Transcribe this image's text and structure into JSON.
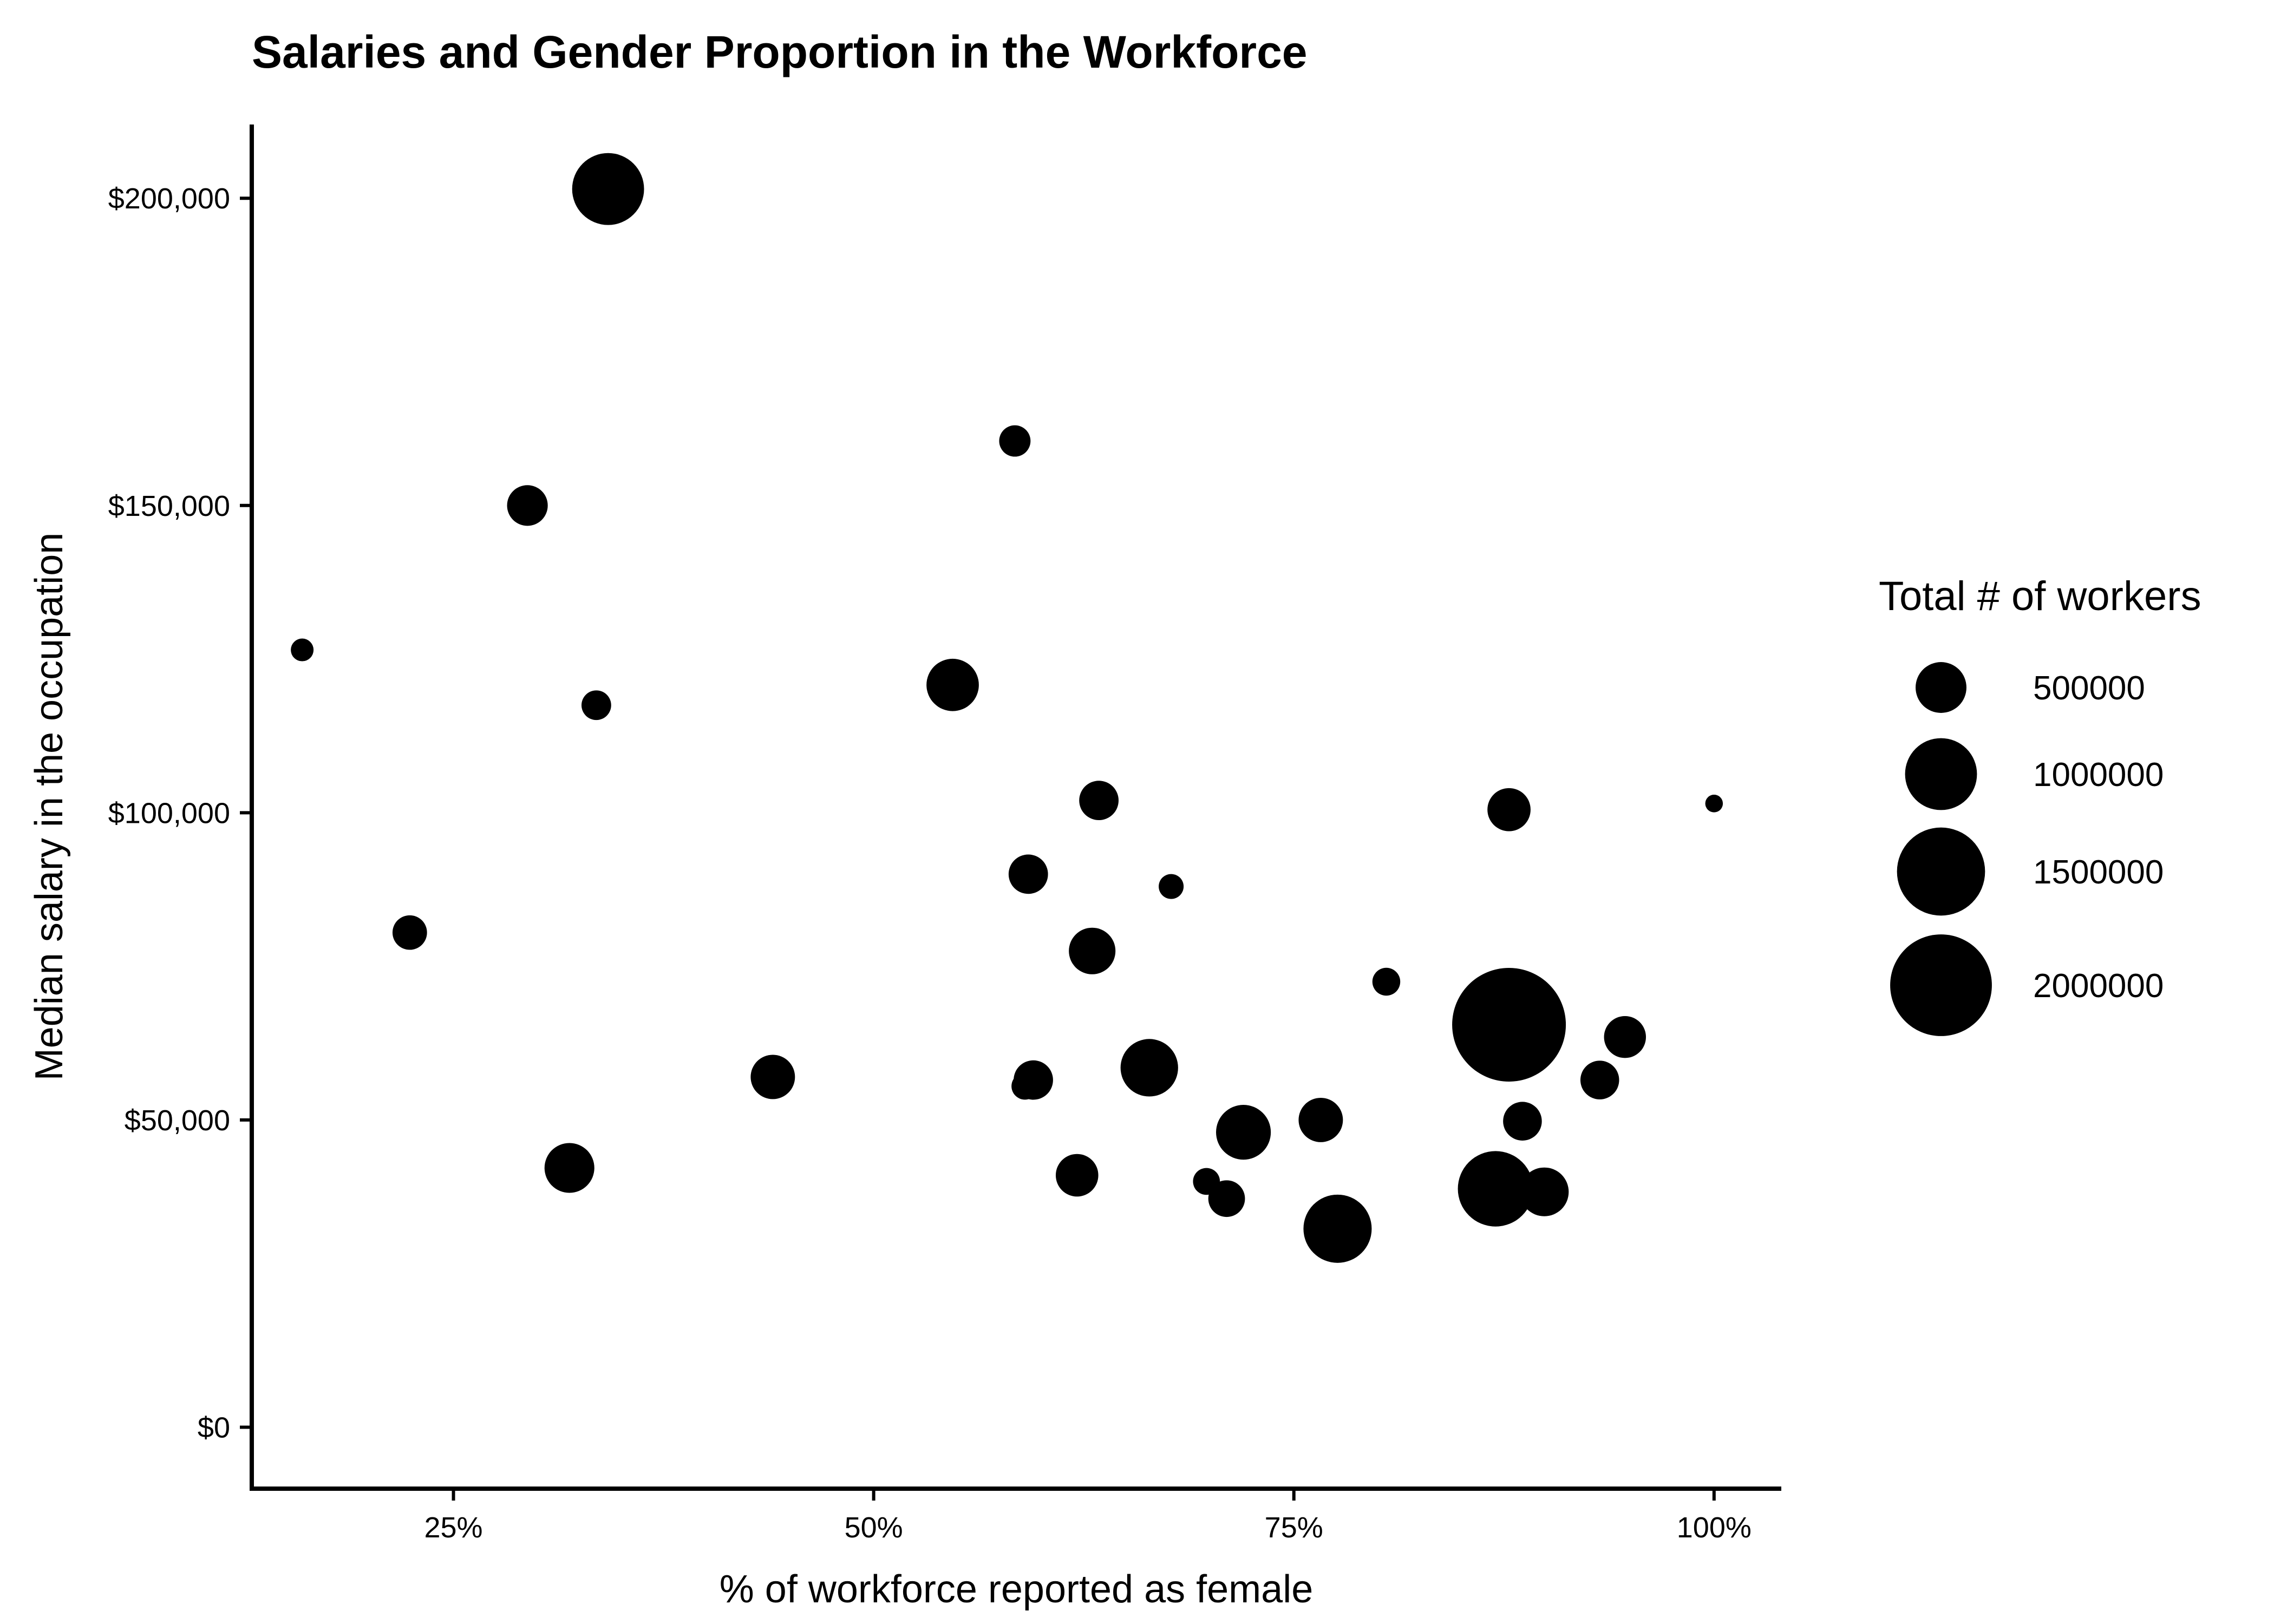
{
  "chart_data": {
    "type": "scatter",
    "title": "Salaries and Gender Proportion in the Workforce",
    "xlabel": "% of workforce reported as female",
    "ylabel": "Median salary in the occupation",
    "xlim": [
      0.13,
      1.04
    ],
    "ylim": [
      -10000,
      212000
    ],
    "x_ticks": [
      {
        "value": 0.25,
        "label": "25%"
      },
      {
        "value": 0.5,
        "label": "50%"
      },
      {
        "value": 0.75,
        "label": "75%"
      },
      {
        "value": 1.0,
        "label": "100%"
      }
    ],
    "y_ticks": [
      {
        "value": 0,
        "label": "$0"
      },
      {
        "value": 50000,
        "label": "$50,000"
      },
      {
        "value": 100000,
        "label": "$100,000"
      },
      {
        "value": 150000,
        "label": "$150,000"
      },
      {
        "value": 200000,
        "label": "$200,000"
      }
    ],
    "grid": false,
    "point_color": "#000000",
    "size_legend": {
      "title": "Total # of workers",
      "placement": "right",
      "entries": [
        {
          "value": 500000,
          "label": "500000"
        },
        {
          "value": 1000000,
          "label": "1000000"
        },
        {
          "value": 1500000,
          "label": "1500000"
        },
        {
          "value": 2000000,
          "label": "2000000"
        }
      ]
    },
    "points": [
      {
        "x": 0.342,
        "y": 201500,
        "size": 1000000
      },
      {
        "x": 0.584,
        "y": 160500,
        "size": 190000
      },
      {
        "x": 0.294,
        "y": 150000,
        "size": 320000
      },
      {
        "x": 0.16,
        "y": 126500,
        "size": 100000
      },
      {
        "x": 0.547,
        "y": 120800,
        "size": 530000
      },
      {
        "x": 0.335,
        "y": 117500,
        "size": 170000
      },
      {
        "x": 0.634,
        "y": 102000,
        "size": 300000
      },
      {
        "x": 0.878,
        "y": 100500,
        "size": 360000
      },
      {
        "x": 1.0,
        "y": 101500,
        "size": 60000
      },
      {
        "x": 0.592,
        "y": 90000,
        "size": 300000
      },
      {
        "x": 0.677,
        "y": 88000,
        "size": 120000
      },
      {
        "x": 0.224,
        "y": 80500,
        "size": 230000
      },
      {
        "x": 0.63,
        "y": 77500,
        "size": 420000
      },
      {
        "x": 0.805,
        "y": 72500,
        "size": 150000
      },
      {
        "x": 0.866,
        "y": 70500,
        "size": 240000
      },
      {
        "x": 0.878,
        "y": 65500,
        "size": 2500000
      },
      {
        "x": 0.947,
        "y": 63500,
        "size": 340000
      },
      {
        "x": 0.664,
        "y": 58500,
        "size": 640000
      },
      {
        "x": 0.44,
        "y": 57000,
        "size": 380000
      },
      {
        "x": 0.595,
        "y": 56500,
        "size": 300000
      },
      {
        "x": 0.59,
        "y": 55500,
        "size": 140000
      },
      {
        "x": 0.932,
        "y": 56500,
        "size": 290000
      },
      {
        "x": 0.766,
        "y": 50000,
        "size": 380000
      },
      {
        "x": 0.886,
        "y": 49800,
        "size": 290000
      },
      {
        "x": 0.72,
        "y": 48000,
        "size": 580000
      },
      {
        "x": 0.319,
        "y": 42200,
        "size": 480000
      },
      {
        "x": 0.621,
        "y": 41000,
        "size": 350000
      },
      {
        "x": 0.698,
        "y": 40000,
        "size": 140000
      },
      {
        "x": 0.87,
        "y": 38800,
        "size": 1100000
      },
      {
        "x": 0.899,
        "y": 38300,
        "size": 460000
      },
      {
        "x": 0.71,
        "y": 37200,
        "size": 260000
      },
      {
        "x": 0.776,
        "y": 32300,
        "size": 900000
      }
    ]
  }
}
